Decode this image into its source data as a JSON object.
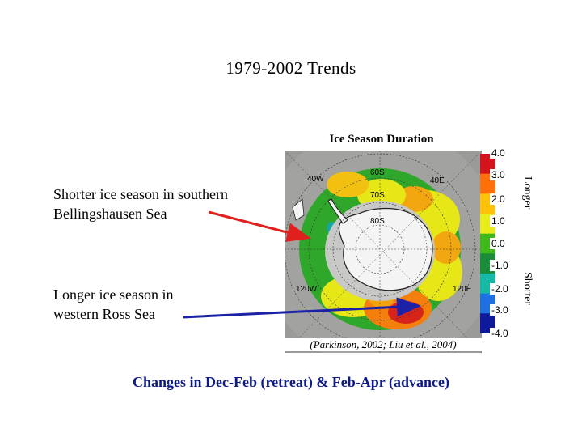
{
  "title": "1979-2002 Trends",
  "map": {
    "title": "Ice Season Duration",
    "citation": "(Parkinson, 2002; Liu et al., 2004)",
    "graticule_labels": [
      "40W",
      "60S",
      "40E",
      "70S",
      "80S",
      "120W",
      "120E"
    ]
  },
  "color_scale": {
    "ticks": [
      "4.0",
      "3.0",
      "2.0",
      "1.0",
      "0.0",
      "-1.0",
      "-2.0",
      "-3.0",
      "-4.0"
    ],
    "longer_label": "Longer",
    "shorter_label": "Shorter",
    "colors": [
      "#d4141c",
      "#ff6f0a",
      "#ffc20a",
      "#e8ec1a",
      "#3fb81c",
      "#1a8c3a",
      "#16b8a6",
      "#1e6fe0",
      "#0f1a9a"
    ]
  },
  "annotations": {
    "shorter": [
      "Shorter ice season in southern",
      "Bellingshausen Sea"
    ],
    "longer": [
      "Longer ice season  in",
      "western Ross Sea"
    ]
  },
  "footer": "Changes in Dec-Feb (retreat) & Feb-Apr (advance)",
  "colors": {
    "red_arrow": "#e0201c",
    "blue_arrow": "#1c22a8",
    "footer_text": "#0c1a8a"
  }
}
